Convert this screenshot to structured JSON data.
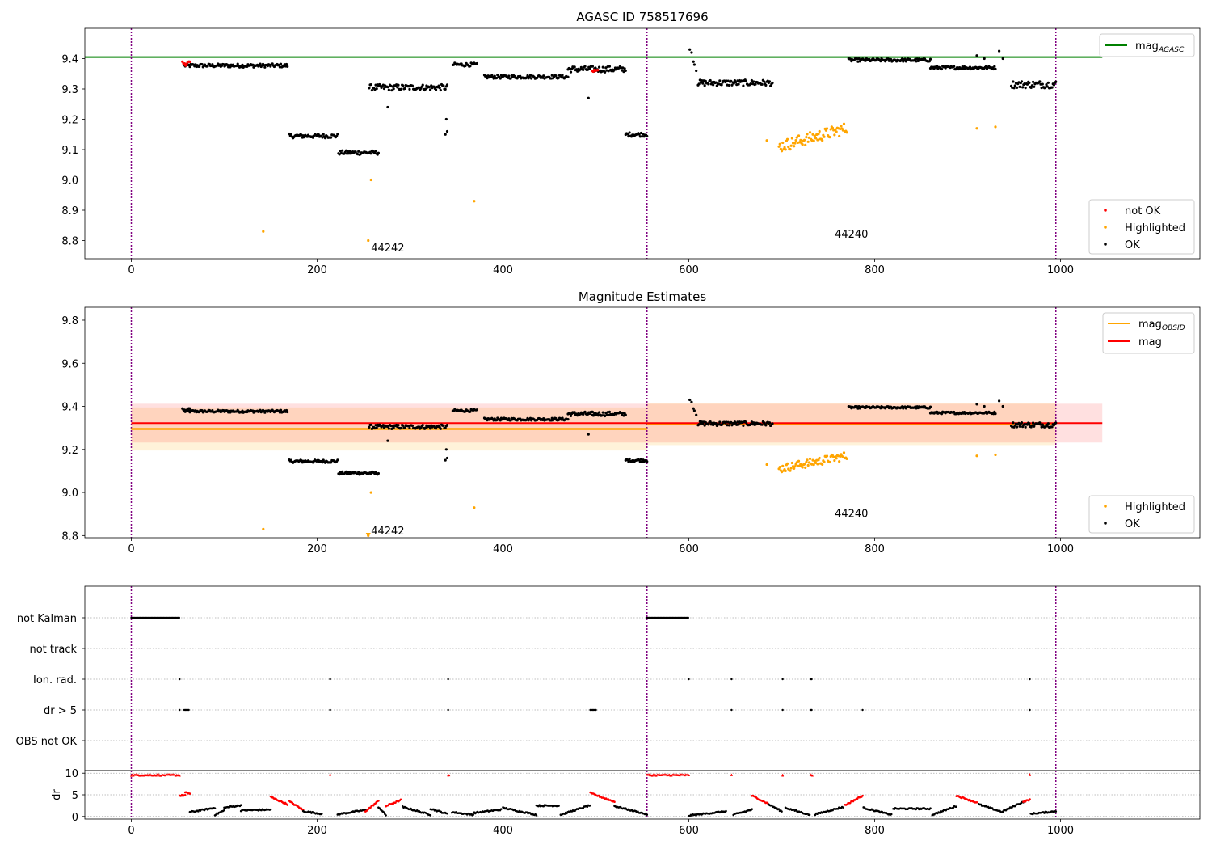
{
  "chart_data": [
    {
      "type": "scatter",
      "title": "AGASC ID 758517696",
      "xlim": [
        -50,
        1150
      ],
      "ylim": [
        8.74,
        9.5
      ],
      "x_ticks": [
        0,
        200,
        400,
        600,
        800,
        1000
      ],
      "y_ticks": [
        8.8,
        8.9,
        9.0,
        9.1,
        9.2,
        9.3,
        9.4
      ],
      "vlines": [
        0,
        555,
        995
      ],
      "hline_mag_agasc": 9.405,
      "hline_xmax": 1045,
      "obsid_labels": [
        {
          "text": "44242",
          "x": 258,
          "y": 8.775
        },
        {
          "text": "44240",
          "x": 757,
          "y": 8.82
        }
      ],
      "legend_lines": [
        {
          "name": "mag_AGASC",
          "main": "mag",
          "sub": "AGASC",
          "color": "#008000"
        }
      ],
      "legend_points": [
        {
          "name": "not OK",
          "color": "#ff0000"
        },
        {
          "name": "Highlighted",
          "color": "#ffa500"
        },
        {
          "name": "OK",
          "color": "#000000"
        }
      ],
      "segments": [
        {
          "x0": 57,
          "x1": 168,
          "y": 9.377,
          "amp": 0.006,
          "cls": "ok"
        },
        {
          "x0": 55,
          "x1": 63,
          "y": 9.385,
          "amp": 0.008,
          "cls": "notok"
        },
        {
          "x0": 170,
          "x1": 222,
          "y": 9.145,
          "amp": 0.007,
          "cls": "ok"
        },
        {
          "x0": 223,
          "x1": 266,
          "y": 9.09,
          "amp": 0.007,
          "cls": "ok"
        },
        {
          "x0": 256,
          "x1": 340,
          "y": 9.305,
          "amp": 0.01,
          "cls": "ok"
        },
        {
          "x0": 346,
          "x1": 372,
          "y": 9.38,
          "amp": 0.006,
          "cls": "ok"
        },
        {
          "x0": 380,
          "x1": 470,
          "y": 9.34,
          "amp": 0.006,
          "cls": "ok"
        },
        {
          "x0": 470,
          "x1": 532,
          "y": 9.365,
          "amp": 0.01,
          "cls": "ok"
        },
        {
          "x0": 496,
          "x1": 502,
          "y": 9.36,
          "amp": 0.003,
          "cls": "notok"
        },
        {
          "x0": 532,
          "x1": 555,
          "y": 9.15,
          "amp": 0.007,
          "cls": "ok"
        },
        {
          "x0": 610,
          "x1": 690,
          "y": 9.32,
          "amp": 0.01,
          "cls": "ok"
        },
        {
          "x0": 772,
          "x1": 860,
          "y": 9.395,
          "amp": 0.005,
          "cls": "ok"
        },
        {
          "x0": 860,
          "x1": 930,
          "y": 9.37,
          "amp": 0.005,
          "cls": "ok"
        },
        {
          "x0": 947,
          "x1": 995,
          "y": 9.315,
          "amp": 0.012,
          "cls": "ok"
        },
        {
          "x0": 697,
          "x1": 770,
          "y": 9.14,
          "amp": 0.02,
          "cls": "hl"
        }
      ],
      "extra_points": [
        {
          "x": 142,
          "y": 8.83,
          "cls": "hl"
        },
        {
          "x": 255,
          "y": 8.8,
          "cls": "hl"
        },
        {
          "x": 258,
          "y": 9.0,
          "cls": "hl"
        },
        {
          "x": 369,
          "y": 8.93,
          "cls": "hl"
        },
        {
          "x": 684,
          "y": 9.13,
          "cls": "hl"
        },
        {
          "x": 910,
          "y": 9.17,
          "cls": "hl"
        },
        {
          "x": 930,
          "y": 9.175,
          "cls": "hl"
        },
        {
          "x": 338,
          "y": 9.15,
          "cls": "ok"
        },
        {
          "x": 339,
          "y": 9.2,
          "cls": "ok"
        },
        {
          "x": 340,
          "y": 9.16,
          "cls": "ok"
        },
        {
          "x": 492,
          "y": 9.27,
          "cls": "ok"
        },
        {
          "x": 276,
          "y": 9.24,
          "cls": "ok"
        },
        {
          "x": 601,
          "y": 9.43,
          "cls": "ok"
        },
        {
          "x": 603,
          "y": 9.42,
          "cls": "ok"
        },
        {
          "x": 606,
          "y": 9.38,
          "cls": "ok"
        },
        {
          "x": 608,
          "y": 9.36,
          "cls": "ok"
        },
        {
          "x": 605,
          "y": 9.39,
          "cls": "ok"
        },
        {
          "x": 910,
          "y": 9.41,
          "cls": "ok"
        },
        {
          "x": 918,
          "y": 9.4,
          "cls": "ok"
        },
        {
          "x": 934,
          "y": 9.425,
          "cls": "ok"
        },
        {
          "x": 938,
          "y": 9.4,
          "cls": "ok"
        }
      ]
    },
    {
      "type": "scatter",
      "title": "Magnitude Estimates",
      "xlim": [
        -50,
        1150
      ],
      "ylim": [
        8.79,
        9.86
      ],
      "x_ticks": [
        0,
        200,
        400,
        600,
        800,
        1000
      ],
      "y_ticks": [
        8.8,
        9.0,
        9.2,
        9.4,
        9.6,
        9.8
      ],
      "vlines": [
        0,
        555,
        995
      ],
      "mag_band": {
        "x0": 0,
        "x1": 1045,
        "y": 9.322,
        "lo": 9.232,
        "hi": 9.412,
        "color": "#ff0000"
      },
      "obsid_bands": [
        {
          "x0": 0,
          "x1": 555,
          "y": 9.295,
          "lo": 9.195,
          "hi": 9.395
        },
        {
          "x0": 555,
          "x1": 995,
          "y": 9.318,
          "lo": 9.22,
          "hi": 9.415
        }
      ],
      "obsid_labels": [
        {
          "text": "44242",
          "x": 258,
          "y": 8.82
        },
        {
          "text": "44240",
          "x": 757,
          "y": 8.9
        }
      ],
      "legend_lines": [
        {
          "name": "mag_OBSID",
          "main": "mag",
          "sub": "OBSID",
          "color": "#ffa500"
        },
        {
          "name": "mag",
          "main": "mag",
          "sub": "",
          "color": "#ff0000"
        }
      ],
      "legend_points": [
        {
          "name": "Highlighted",
          "color": "#ffa500"
        },
        {
          "name": "OK",
          "color": "#000000"
        }
      ],
      "same_points_as_panel": 1
    },
    {
      "type": "scatter",
      "xlim": [
        -50,
        1150
      ],
      "x_ticks": [
        0,
        200,
        400,
        600,
        800,
        1000
      ],
      "vlines": [
        0,
        555,
        995
      ],
      "flag_rows": [
        "not Kalman",
        "not track",
        "Ion. rad.",
        "dr > 5",
        "OBS not OK"
      ],
      "flag_events": {
        "not Kalman": [
          [
            0,
            52
          ],
          [
            555,
            600
          ]
        ],
        "not track": [],
        "Ion. rad.": [
          [
            52,
            52
          ],
          [
            214,
            214
          ],
          [
            341,
            342
          ],
          [
            600,
            600
          ],
          [
            646,
            646
          ],
          [
            701,
            701
          ],
          [
            731,
            733
          ],
          [
            967,
            967
          ]
        ],
        "dr > 5": [
          [
            52,
            52
          ],
          [
            57,
            62
          ],
          [
            214,
            214
          ],
          [
            341,
            342
          ],
          [
            494,
            500
          ],
          [
            646,
            646
          ],
          [
            701,
            701
          ],
          [
            731,
            733
          ],
          [
            787,
            787
          ],
          [
            967,
            967
          ]
        ],
        "OBS not OK": []
      },
      "dr_ylabel": "dr",
      "dr_ylim": [
        -0.6,
        10.6
      ],
      "dr_ticks": [
        0,
        5,
        10
      ],
      "dr_threshold": 5,
      "dr_segments": [
        {
          "x0": 0,
          "x1": 52,
          "y0": 9.6,
          "y1": 9.6,
          "cls": "red"
        },
        {
          "x0": 52,
          "x1": 58,
          "y0": 4.8,
          "y1": 4.9,
          "cls": "red"
        },
        {
          "x0": 58,
          "x1": 63,
          "y0": 5.5,
          "y1": 5.3,
          "cls": "red"
        },
        {
          "x0": 63,
          "x1": 90,
          "y0": 1.0,
          "y1": 2.0,
          "cls": "black"
        },
        {
          "x0": 90,
          "x1": 100,
          "y0": 0.4,
          "y1": 1.4,
          "cls": "black"
        },
        {
          "x0": 100,
          "x1": 118,
          "y0": 2.0,
          "y1": 2.6,
          "cls": "black"
        },
        {
          "x0": 118,
          "x1": 150,
          "y0": 1.4,
          "y1": 1.6,
          "cls": "black"
        },
        {
          "x0": 150,
          "x1": 168,
          "y0": 4.5,
          "y1": 2.8,
          "cls": "red"
        },
        {
          "x0": 170,
          "x1": 185,
          "y0": 3.5,
          "y1": 1.5,
          "cls": "red"
        },
        {
          "x0": 185,
          "x1": 205,
          "y0": 1.2,
          "y1": 0.6,
          "cls": "black"
        },
        {
          "x0": 214,
          "x1": 214,
          "y0": 9.6,
          "y1": 9.6,
          "cls": "red"
        },
        {
          "x0": 222,
          "x1": 252,
          "y0": 0.5,
          "y1": 1.5,
          "cls": "black"
        },
        {
          "x0": 252,
          "x1": 266,
          "y0": 1.2,
          "y1": 3.6,
          "cls": "red"
        },
        {
          "x0": 266,
          "x1": 274,
          "y0": 2.2,
          "y1": 0.3,
          "cls": "black"
        },
        {
          "x0": 274,
          "x1": 290,
          "y0": 2.4,
          "y1": 3.8,
          "cls": "red"
        },
        {
          "x0": 292,
          "x1": 322,
          "y0": 2.2,
          "y1": 0.4,
          "cls": "black"
        },
        {
          "x0": 322,
          "x1": 340,
          "y0": 1.8,
          "y1": 0.6,
          "cls": "black"
        },
        {
          "x0": 341,
          "x1": 342,
          "y0": 9.6,
          "y1": 9.6,
          "cls": "red"
        },
        {
          "x0": 345,
          "x1": 368,
          "y0": 1.0,
          "y1": 0.4,
          "cls": "black"
        },
        {
          "x0": 368,
          "x1": 398,
          "y0": 0.8,
          "y1": 1.6,
          "cls": "black"
        },
        {
          "x0": 400,
          "x1": 436,
          "y0": 2.0,
          "y1": 0.4,
          "cls": "black"
        },
        {
          "x0": 436,
          "x1": 460,
          "y0": 2.5,
          "y1": 2.5,
          "cls": "black"
        },
        {
          "x0": 462,
          "x1": 494,
          "y0": 0.4,
          "y1": 2.6,
          "cls": "black"
        },
        {
          "x0": 494,
          "x1": 520,
          "y0": 5.4,
          "y1": 3.4,
          "cls": "red"
        },
        {
          "x0": 520,
          "x1": 555,
          "y0": 2.4,
          "y1": 0.5,
          "cls": "black"
        },
        {
          "x0": 555,
          "x1": 600,
          "y0": 9.6,
          "y1": 9.6,
          "cls": "red"
        },
        {
          "x0": 600,
          "x1": 640,
          "y0": 0.2,
          "y1": 1.2,
          "cls": "black"
        },
        {
          "x0": 646,
          "x1": 646,
          "y0": 9.6,
          "y1": 9.6,
          "cls": "red"
        },
        {
          "x0": 648,
          "x1": 668,
          "y0": 0.4,
          "y1": 1.6,
          "cls": "black"
        },
        {
          "x0": 668,
          "x1": 685,
          "y0": 4.8,
          "y1": 3.0,
          "cls": "red"
        },
        {
          "x0": 686,
          "x1": 700,
          "y0": 2.8,
          "y1": 1.2,
          "cls": "black"
        },
        {
          "x0": 701,
          "x1": 701,
          "y0": 9.6,
          "y1": 9.6,
          "cls": "red"
        },
        {
          "x0": 704,
          "x1": 730,
          "y0": 2.0,
          "y1": 0.4,
          "cls": "black"
        },
        {
          "x0": 731,
          "x1": 733,
          "y0": 9.6,
          "y1": 9.6,
          "cls": "red"
        },
        {
          "x0": 736,
          "x1": 766,
          "y0": 0.5,
          "y1": 2.2,
          "cls": "black"
        },
        {
          "x0": 768,
          "x1": 787,
          "y0": 2.6,
          "y1": 4.8,
          "cls": "red"
        },
        {
          "x0": 788,
          "x1": 818,
          "y0": 2.0,
          "y1": 0.4,
          "cls": "black"
        },
        {
          "x0": 820,
          "x1": 860,
          "y0": 1.8,
          "y1": 1.8,
          "cls": "black"
        },
        {
          "x0": 862,
          "x1": 888,
          "y0": 0.4,
          "y1": 2.4,
          "cls": "black"
        },
        {
          "x0": 888,
          "x1": 910,
          "y0": 4.8,
          "y1": 3.2,
          "cls": "red"
        },
        {
          "x0": 912,
          "x1": 938,
          "y0": 2.8,
          "y1": 1.0,
          "cls": "black"
        },
        {
          "x0": 938,
          "x1": 960,
          "y0": 1.2,
          "y1": 3.4,
          "cls": "black"
        },
        {
          "x0": 960,
          "x1": 967,
          "y0": 3.4,
          "y1": 3.9,
          "cls": "red"
        },
        {
          "x0": 967,
          "x1": 967,
          "y0": 9.6,
          "y1": 9.6,
          "cls": "red"
        },
        {
          "x0": 968,
          "x1": 995,
          "y0": 0.6,
          "y1": 1.2,
          "cls": "black"
        }
      ]
    }
  ]
}
